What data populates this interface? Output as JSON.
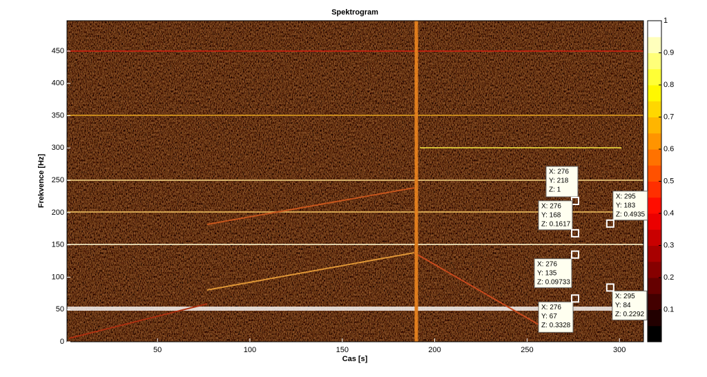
{
  "chart_data": {
    "type": "heatmap",
    "title": "Spektrogram",
    "xlabel": "Cas [s]",
    "ylabel": "Frekvence [Hz]",
    "xlim": [
      1,
      313
    ],
    "xticks": [
      50,
      100,
      150,
      200,
      250,
      300
    ],
    "ylim": [
      0,
      497
    ],
    "yticks": [
      0,
      50,
      100,
      150,
      200,
      250,
      300,
      350,
      400,
      450
    ],
    "colorbar": {
      "lim": [
        0,
        1
      ],
      "ticks": [
        0.1,
        0.2,
        0.3,
        0.4,
        0.5,
        0.6,
        0.7,
        0.8,
        0.9,
        1
      ]
    },
    "datatips": [
      {
        "x": 276,
        "y": 218,
        "z": 1,
        "labels": [
          "X: 276",
          "Y: 218",
          "Z: 1"
        ]
      },
      {
        "x": 276,
        "y": 168,
        "z": 0.1617,
        "labels": [
          "X: 276",
          "Y: 168",
          "Z: 0.1617"
        ]
      },
      {
        "x": 295,
        "y": 183,
        "z": 0.4935,
        "labels": [
          "X: 295",
          "Y: 183",
          "Z: 0.4935"
        ]
      },
      {
        "x": 276,
        "y": 135,
        "z": 0.09733,
        "labels": [
          "X: 276",
          "Y: 135",
          "Z: 0.09733"
        ]
      },
      {
        "x": 276,
        "y": 67,
        "z": 0.3328,
        "labels": [
          "X: 276",
          "Y: 67",
          "Z: 0.3328"
        ]
      },
      {
        "x": 295,
        "y": 84,
        "z": 0.2292,
        "labels": [
          "X: 295",
          "Y: 84",
          "Z: 0.2292"
        ]
      }
    ]
  }
}
